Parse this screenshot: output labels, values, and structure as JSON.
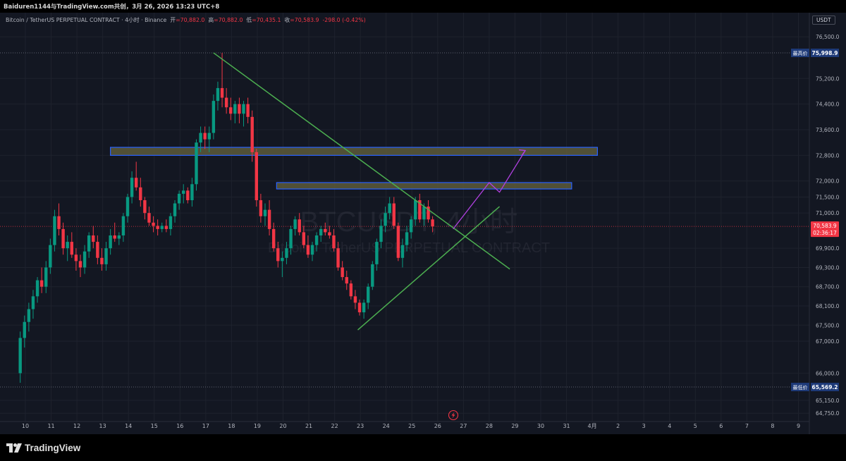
{
  "header": {
    "title": "Baiduren1144与TradingView.com共创，3月 26, 2026 13:23 UTC+8"
  },
  "legend": {
    "symbol": "Bitcoin / TetherUS PERPETUAL CONTRACT · 4小时 · Binance",
    "open_label": "开",
    "open": "=70,882.0",
    "high_label": "高",
    "high": "=70,882.0",
    "low_label": "低",
    "low": "=70,435.1",
    "close_label": "收",
    "close": "=70,583.9",
    "change": "-298.0 (-0.42%)"
  },
  "currency": "USDT",
  "watermark": {
    "line1": "BTCUSDT, 4小时",
    "line2": "Bitcoin / TetherUS PERPETUAL CONTRACT"
  },
  "brand": "TradingView",
  "colors": {
    "up": "#089981",
    "down": "#f23645",
    "background": "#131722",
    "trendline": "#4caf50",
    "projection": "#b040e0",
    "zone_border": "#2962ff",
    "zone_fill": "#5d5a3a"
  },
  "chart_data": {
    "type": "candlestick",
    "timeframe": "4小时",
    "ylim": [
      64750,
      76950
    ],
    "y_ticks": [
      "76,500.0",
      "75,200.0",
      "74,400.0",
      "73,600.0",
      "72,800.0",
      "72,000.0",
      "71,500.0",
      "71,000.0",
      "69,900.0",
      "69,300.0",
      "68,700.0",
      "68,100.0",
      "67,500.0",
      "67,000.0",
      "66,000.0",
      "65,150.0",
      "64,750.0"
    ],
    "x_ticks": [
      "10",
      "11",
      "12",
      "13",
      "14",
      "15",
      "16",
      "17",
      "18",
      "19",
      "20",
      "21",
      "22",
      "23",
      "24",
      "25",
      "26",
      "27",
      "28",
      "29",
      "30",
      "31",
      "4月",
      "2",
      "3",
      "4",
      "5",
      "6",
      "7",
      "8",
      "9"
    ],
    "price_labels": [
      {
        "label": "最高价",
        "value": "75,998.9",
        "price": 75998.9
      },
      {
        "label": "最低价",
        "value": "65,569.2",
        "price": 65569.2
      }
    ],
    "current_price": {
      "value": "70,583.9",
      "countdown": "02:36:17",
      "price": 70583.9
    },
    "series": [
      {
        "day_start": 9.8,
        "step": 0.1667,
        "ohlc": [
          [
            66000,
            67300,
            65700,
            67100
          ],
          [
            67100,
            67800,
            66800,
            67600
          ],
          [
            67600,
            68200,
            67300,
            68000
          ],
          [
            68000,
            68600,
            67700,
            68400
          ],
          [
            68400,
            69000,
            68200,
            68900
          ],
          [
            68900,
            69300,
            68500,
            68700
          ],
          [
            68700,
            69500,
            68500,
            69300
          ],
          [
            69300,
            70200,
            69100,
            70000
          ],
          [
            70000,
            71100,
            69800,
            70900
          ],
          [
            70900,
            71300,
            70300,
            70500
          ],
          [
            70500,
            70700,
            69700,
            69900
          ],
          [
            69900,
            70300,
            69500,
            70100
          ],
          [
            70100,
            70400,
            69600,
            69700
          ],
          [
            69700,
            69900,
            69200,
            69500
          ],
          [
            69500,
            69700,
            69000,
            69300
          ],
          [
            69300,
            70000,
            69100,
            69800
          ],
          [
            69800,
            70400,
            69600,
            70300
          ],
          [
            70300,
            70600,
            69900,
            70100
          ],
          [
            70100,
            70300,
            69400,
            69600
          ],
          [
            69600,
            69900,
            69200,
            69400
          ],
          [
            69400,
            70100,
            69200,
            69900
          ],
          [
            69900,
            70500,
            69700,
            70300
          ],
          [
            70300,
            70700,
            70100,
            70200
          ],
          [
            70200,
            70400,
            70000,
            70300
          ],
          [
            70300,
            71000,
            70100,
            70900
          ],
          [
            70900,
            71600,
            70700,
            71500
          ],
          [
            71500,
            72300,
            71300,
            72100
          ],
          [
            72100,
            72600,
            71700,
            71800
          ],
          [
            71800,
            72100,
            71200,
            71400
          ],
          [
            71400,
            71500,
            70800,
            71000
          ],
          [
            71000,
            71200,
            70600,
            70700
          ],
          [
            70700,
            70900,
            70400,
            70600
          ],
          [
            70600,
            70800,
            70300,
            70500
          ],
          [
            70500,
            70700,
            70400,
            70600
          ],
          [
            70600,
            70800,
            70400,
            70500
          ],
          [
            70500,
            71000,
            70300,
            70900
          ],
          [
            70900,
            71400,
            70700,
            71300
          ],
          [
            71300,
            71700,
            71100,
            71600
          ],
          [
            71600,
            71900,
            71300,
            71700
          ],
          [
            71700,
            71800,
            71300,
            71400
          ],
          [
            71400,
            72100,
            71200,
            71900
          ],
          [
            71900,
            73300,
            71700,
            73200
          ],
          [
            73200,
            73700,
            72900,
            73500
          ],
          [
            73500,
            73700,
            73000,
            73300
          ],
          [
            73300,
            73700,
            72900,
            73500
          ],
          [
            73500,
            74700,
            73300,
            74500
          ],
          [
            74500,
            75100,
            74200,
            74900
          ],
          [
            74900,
            76000,
            74300,
            74600
          ],
          [
            74600,
            74900,
            74100,
            74300
          ],
          [
            74300,
            74600,
            73900,
            74100
          ],
          [
            74100,
            74500,
            73800,
            74400
          ],
          [
            74400,
            74600,
            73800,
            74100
          ],
          [
            74100,
            74500,
            73700,
            74400
          ],
          [
            74400,
            74600,
            73800,
            74000
          ],
          [
            74000,
            74200,
            72600,
            72900
          ],
          [
            72900,
            73000,
            71200,
            71400
          ],
          [
            71400,
            71600,
            70700,
            70900
          ],
          [
            70900,
            71300,
            70600,
            71100
          ],
          [
            71100,
            71400,
            70300,
            70500
          ],
          [
            70500,
            70700,
            69800,
            69900
          ],
          [
            69900,
            70100,
            69300,
            69500
          ],
          [
            69500,
            69800,
            69000,
            69600
          ],
          [
            69600,
            70100,
            69400,
            69900
          ],
          [
            69900,
            70600,
            69700,
            70500
          ],
          [
            70500,
            70900,
            70300,
            70800
          ],
          [
            70800,
            71000,
            70300,
            70400
          ],
          [
            70400,
            70600,
            69900,
            70000
          ],
          [
            70000,
            70300,
            69600,
            69700
          ],
          [
            69700,
            70100,
            69500,
            70000
          ],
          [
            70000,
            70400,
            69800,
            70300
          ],
          [
            70300,
            70600,
            70100,
            70500
          ],
          [
            70500,
            70700,
            70300,
            70400
          ],
          [
            70400,
            70600,
            70200,
            70300
          ],
          [
            70300,
            70500,
            69800,
            69900
          ],
          [
            69900,
            70100,
            69200,
            69300
          ],
          [
            69300,
            69500,
            68900,
            69000
          ],
          [
            69000,
            69200,
            68600,
            68800
          ],
          [
            68800,
            68900,
            68300,
            68400
          ],
          [
            68400,
            68600,
            68000,
            68200
          ],
          [
            68200,
            68300,
            67800,
            67900
          ],
          [
            67900,
            68300,
            67700,
            68200
          ],
          [
            68200,
            68800,
            68000,
            68700
          ],
          [
            68700,
            69500,
            68600,
            69400
          ],
          [
            69400,
            70200,
            69200,
            70100
          ],
          [
            70100,
            70800,
            69900,
            70600
          ],
          [
            70600,
            71200,
            70400,
            71000
          ],
          [
            71000,
            71500,
            70800,
            71300
          ],
          [
            71300,
            71500,
            70500,
            70600
          ],
          [
            70600,
            70700,
            69500,
            69600
          ],
          [
            69600,
            70200,
            69300,
            70000
          ],
          [
            70000,
            70600,
            69800,
            70400
          ],
          [
            70400,
            70900,
            70200,
            70800
          ],
          [
            70800,
            71500,
            70600,
            71400
          ],
          [
            71400,
            71600,
            70700,
            70800
          ],
          [
            70800,
            71300,
            70600,
            71200
          ],
          [
            71200,
            71400,
            70700,
            70800
          ],
          [
            70800,
            70900,
            70400,
            70584
          ]
        ]
      }
    ],
    "annotations": {
      "zones": [
        {
          "x1": 13.3,
          "x2": 32.2,
          "y_top": 73050,
          "y_bottom": 72800
        },
        {
          "x1": 19.75,
          "x2": 31.2,
          "y_top": 71950,
          "y_bottom": 71750
        }
      ],
      "trendlines": [
        {
          "x1": 17.3,
          "y1": 76000,
          "x2": 28.8,
          "y2": 69250
        },
        {
          "x1": 22.9,
          "y1": 67350,
          "x2": 28.4,
          "y2": 71200
        }
      ],
      "projection": [
        [
          26.6,
          70500
        ],
        [
          28.0,
          71950
        ],
        [
          28.4,
          71650
        ],
        [
          29.4,
          72950
        ]
      ]
    }
  }
}
